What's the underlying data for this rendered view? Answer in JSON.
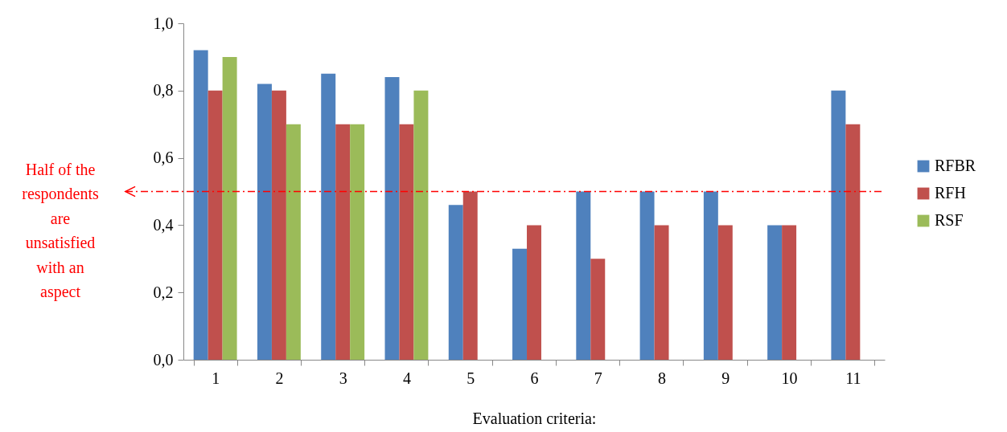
{
  "chart_data": {
    "type": "bar",
    "xlabel": "Evaluation criteria:",
    "categories": [
      "1",
      "2",
      "3",
      "4",
      "5",
      "6",
      "7",
      "8",
      "9",
      "10",
      "11"
    ],
    "series": [
      {
        "name": "RFBR",
        "color": "#4f81bd",
        "values": [
          0.92,
          0.82,
          0.85,
          0.84,
          0.46,
          0.33,
          0.5,
          0.5,
          0.5,
          0.4,
          0.8
        ]
      },
      {
        "name": "RFH",
        "color": "#c0504d",
        "values": [
          0.8,
          0.8,
          0.7,
          0.7,
          0.5,
          0.4,
          0.3,
          0.4,
          0.4,
          0.4,
          0.7
        ]
      },
      {
        "name": "RSF",
        "color": "#9bbb59",
        "values": [
          0.9,
          0.7,
          0.7,
          0.8,
          null,
          null,
          null,
          null,
          null,
          null,
          null
        ]
      }
    ],
    "ylim": [
      0,
      1
    ],
    "yticks": [
      {
        "value": 0,
        "label": "0,0"
      },
      {
        "value": 0.2,
        "label": "0,2"
      },
      {
        "value": 0.4,
        "label": "0,4"
      },
      {
        "value": 0.6,
        "label": "0,6"
      },
      {
        "value": 0.8,
        "label": "0,8"
      },
      {
        "value": 1,
        "label": "1,0"
      }
    ],
    "ref_lines": [
      {
        "axis": "y",
        "value": 0.5,
        "label": "Half of the respondents are unsatisfied with an aspect",
        "color": "#ff0000",
        "line_style": "dashed"
      }
    ],
    "legend": "right",
    "grid": false
  }
}
